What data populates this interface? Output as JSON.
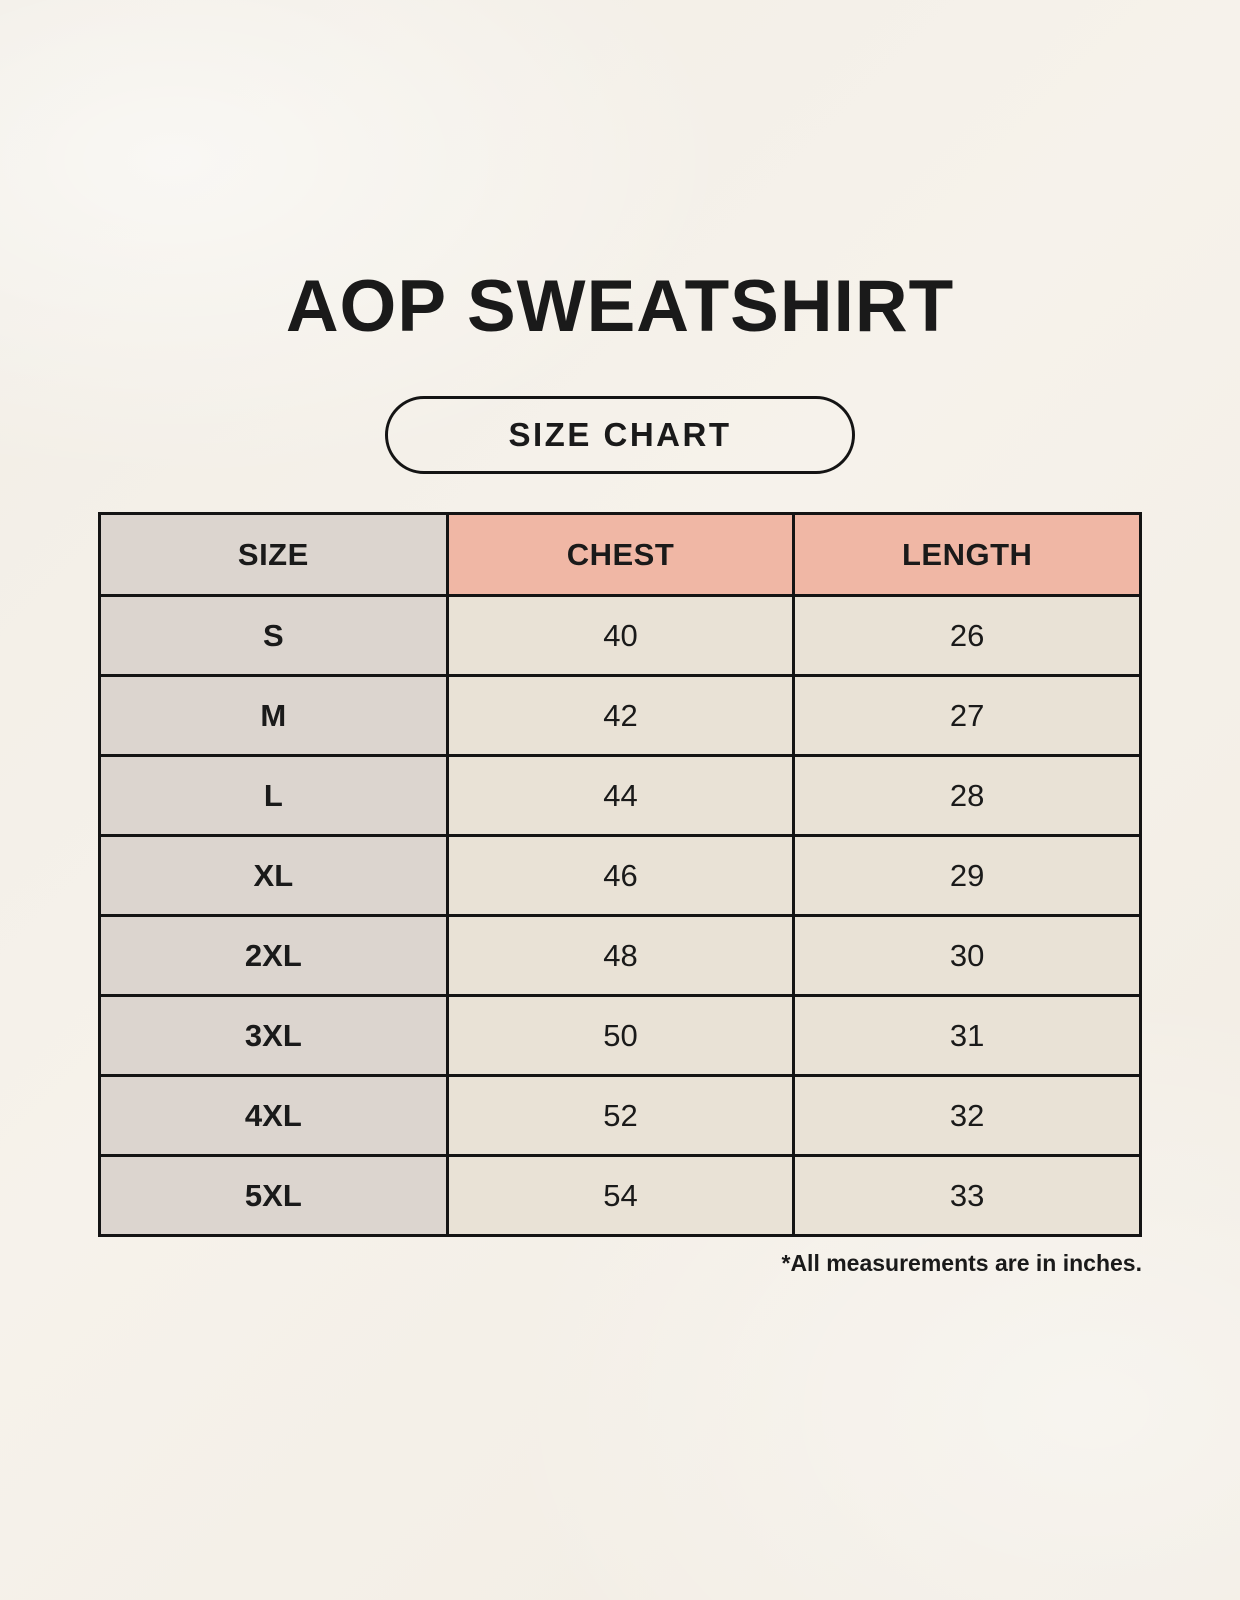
{
  "page": {
    "title": "AOP SWEATSHIRT",
    "badge_label": "SIZE CHART",
    "footnote": "*All measurements are in inches."
  },
  "chart_data": {
    "type": "table",
    "title": "AOP SWEATSHIRT",
    "subtitle": "SIZE CHART",
    "units": "inches",
    "columns": [
      "SIZE",
      "CHEST",
      "LENGTH"
    ],
    "rows": [
      {
        "size": "S",
        "chest": "40",
        "length": "26"
      },
      {
        "size": "M",
        "chest": "42",
        "length": "27"
      },
      {
        "size": "L",
        "chest": "44",
        "length": "28"
      },
      {
        "size": "XL",
        "chest": "46",
        "length": "29"
      },
      {
        "size": "2XL",
        "chest": "48",
        "length": "30"
      },
      {
        "size": "3XL",
        "chest": "50",
        "length": "31"
      },
      {
        "size": "4XL",
        "chest": "52",
        "length": "32"
      },
      {
        "size": "5XL",
        "chest": "54",
        "length": "33"
      }
    ]
  },
  "colors": {
    "background": "#f4f0e8",
    "size_column_bg": "#dcd5cf",
    "accent_header_bg": "#f0b7a5",
    "cell_bg": "#e9e2d6",
    "border": "#141414",
    "text": "#1a1a1a"
  }
}
